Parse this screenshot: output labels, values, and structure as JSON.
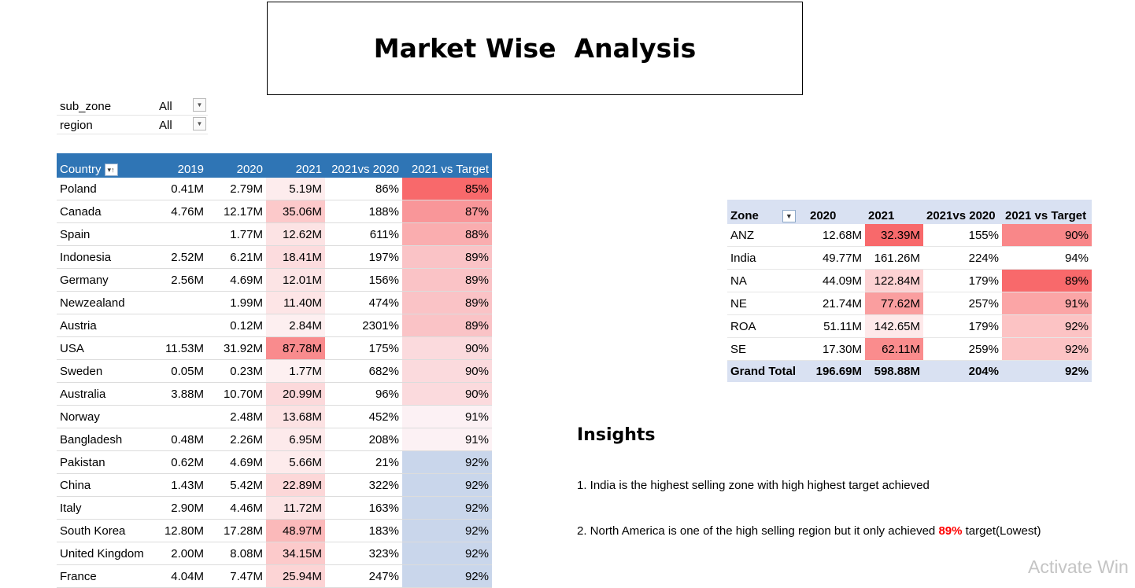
{
  "title": "Market Wise  Analysis",
  "filters": [
    {
      "label": "sub_zone",
      "value": "All"
    },
    {
      "label": "region",
      "value": "All"
    }
  ],
  "country_table": {
    "headers": [
      "Country",
      "2019",
      "2020",
      "2021",
      "2021vs 2020",
      "2021 vs Target"
    ],
    "rows": [
      {
        "country": "Poland",
        "y2019": "0.41M",
        "y2020": "2.79M",
        "y2021": "5.19M",
        "vs2020": "86%",
        "vsTarget": "85%"
      },
      {
        "country": "Canada",
        "y2019": "4.76M",
        "y2020": "12.17M",
        "y2021": "35.06M",
        "vs2020": "188%",
        "vsTarget": "87%"
      },
      {
        "country": "Spain",
        "y2019": "",
        "y2020": "1.77M",
        "y2021": "12.62M",
        "vs2020": "611%",
        "vsTarget": "88%"
      },
      {
        "country": "Indonesia",
        "y2019": "2.52M",
        "y2020": "6.21M",
        "y2021": "18.41M",
        "vs2020": "197%",
        "vsTarget": "89%"
      },
      {
        "country": "Germany",
        "y2019": "2.56M",
        "y2020": "4.69M",
        "y2021": "12.01M",
        "vs2020": "156%",
        "vsTarget": "89%"
      },
      {
        "country": "Newzealand",
        "y2019": "",
        "y2020": "1.99M",
        "y2021": "11.40M",
        "vs2020": "474%",
        "vsTarget": "89%"
      },
      {
        "country": "Austria",
        "y2019": "",
        "y2020": "0.12M",
        "y2021": "2.84M",
        "vs2020": "2301%",
        "vsTarget": "89%"
      },
      {
        "country": "USA",
        "y2019": "11.53M",
        "y2020": "31.92M",
        "y2021": "87.78M",
        "vs2020": "175%",
        "vsTarget": "90%"
      },
      {
        "country": "Sweden",
        "y2019": "0.05M",
        "y2020": "0.23M",
        "y2021": "1.77M",
        "vs2020": "682%",
        "vsTarget": "90%"
      },
      {
        "country": "Australia",
        "y2019": "3.88M",
        "y2020": "10.70M",
        "y2021": "20.99M",
        "vs2020": "96%",
        "vsTarget": "90%"
      },
      {
        "country": "Norway",
        "y2019": "",
        "y2020": "2.48M",
        "y2021": "13.68M",
        "vs2020": "452%",
        "vsTarget": "91%"
      },
      {
        "country": "Bangladesh",
        "y2019": "0.48M",
        "y2020": "2.26M",
        "y2021": "6.95M",
        "vs2020": "208%",
        "vsTarget": "91%"
      },
      {
        "country": "Pakistan",
        "y2019": "0.62M",
        "y2020": "4.69M",
        "y2021": "5.66M",
        "vs2020": "21%",
        "vsTarget": "92%"
      },
      {
        "country": "China",
        "y2019": "1.43M",
        "y2020": "5.42M",
        "y2021": "22.89M",
        "vs2020": "322%",
        "vsTarget": "92%"
      },
      {
        "country": "Italy",
        "y2019": "2.90M",
        "y2020": "4.46M",
        "y2021": "11.72M",
        "vs2020": "163%",
        "vsTarget": "92%"
      },
      {
        "country": "South Korea",
        "y2019": "12.80M",
        "y2020": "17.28M",
        "y2021": "48.97M",
        "vs2020": "183%",
        "vsTarget": "92%"
      },
      {
        "country": "United Kingdom",
        "y2019": "2.00M",
        "y2020": "8.08M",
        "y2021": "34.15M",
        "vs2020": "323%",
        "vsTarget": "92%"
      },
      {
        "country": "France",
        "y2019": "4.04M",
        "y2020": "7.47M",
        "y2021": "25.94M",
        "vs2020": "247%",
        "vsTarget": "92%"
      }
    ]
  },
  "zone_table": {
    "headers": [
      "Zone",
      "2020",
      "2021",
      "2021vs 2020",
      "2021 vs Target"
    ],
    "rows": [
      {
        "zone": "ANZ",
        "y2020": "12.68M",
        "y2021": "32.39M",
        "vs2020": "155%",
        "vsTarget": "90%"
      },
      {
        "zone": "India",
        "y2020": "49.77M",
        "y2021": "161.26M",
        "vs2020": "224%",
        "vsTarget": "94%"
      },
      {
        "zone": "NA",
        "y2020": "44.09M",
        "y2021": "122.84M",
        "vs2020": "179%",
        "vsTarget": "89%"
      },
      {
        "zone": "NE",
        "y2020": "21.74M",
        "y2021": "77.62M",
        "vs2020": "257%",
        "vsTarget": "91%"
      },
      {
        "zone": "ROA",
        "y2020": "51.11M",
        "y2021": "142.65M",
        "vs2020": "179%",
        "vsTarget": "92%"
      },
      {
        "zone": "SE",
        "y2020": "17.30M",
        "y2021": "62.11M",
        "vs2020": "259%",
        "vsTarget": "92%"
      }
    ],
    "total": {
      "label": "Grand Total",
      "y2020": "196.69M",
      "y2021": "598.88M",
      "vs2020": "204%",
      "vsTarget": "92%"
    }
  },
  "insights": {
    "title": "Insights",
    "line1": "1. India is the highest selling zone with high highest target achieved",
    "line2_before": "2. North America is one of the high selling region but it only achieved ",
    "line2_highlight": "89%",
    "line2_after": " target(Lowest)"
  },
  "watermark": "Activate Win",
  "colors": {
    "header_blue": "#2f75b5",
    "zone_header": "#d9e1f2",
    "highlight_red": "#ff0000"
  }
}
